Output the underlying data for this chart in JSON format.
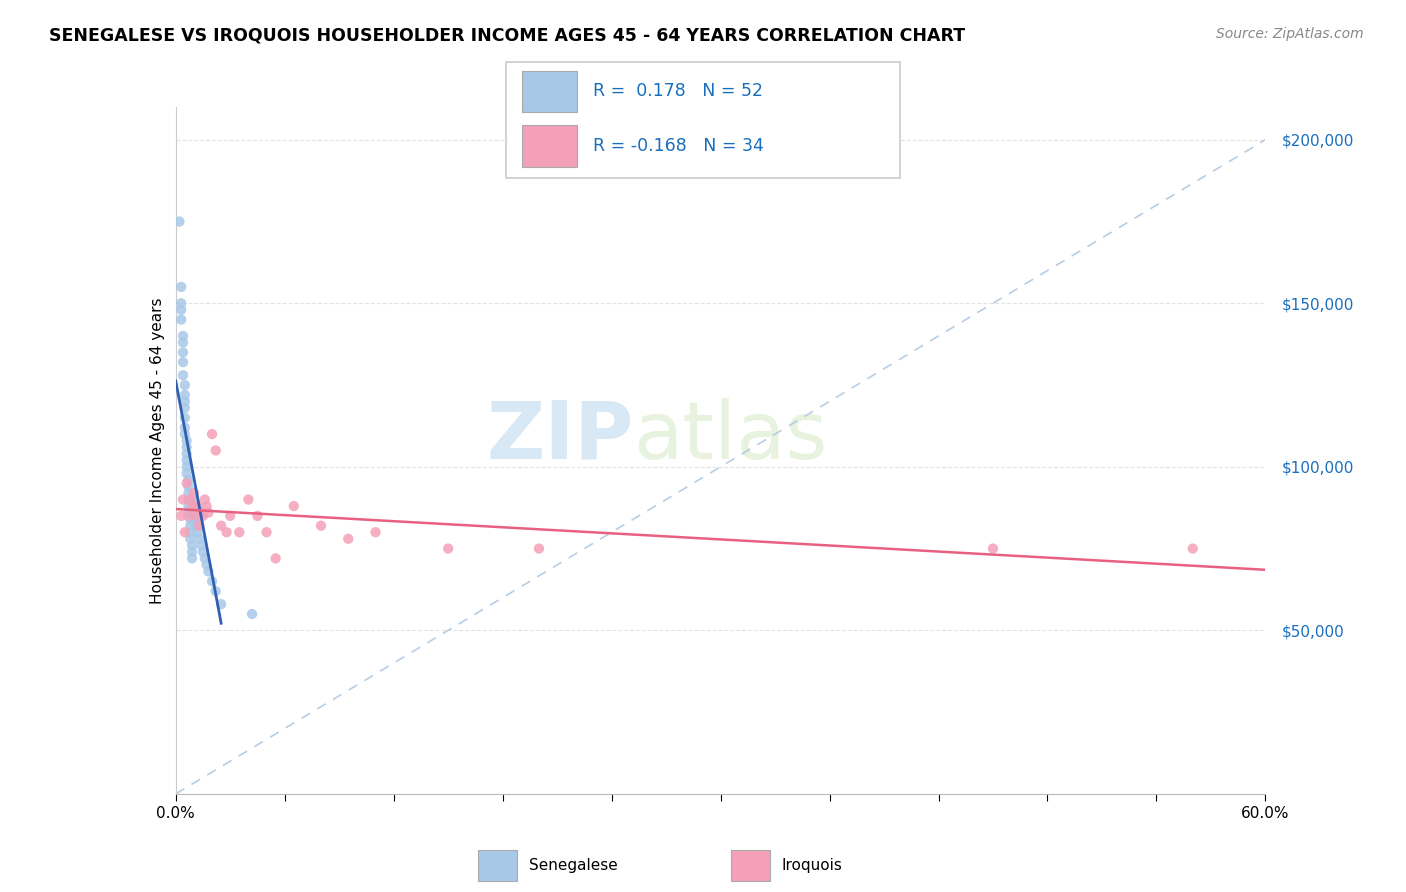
{
  "title": "SENEGALESE VS IROQUOIS HOUSEHOLDER INCOME AGES 45 - 64 YEARS CORRELATION CHART",
  "source": "Source: ZipAtlas.com",
  "ylabel": "Householder Income Ages 45 - 64 years",
  "x_min": 0.0,
  "x_max": 0.6,
  "y_min": 0,
  "y_max": 210000,
  "ytick_vals": [
    0,
    50000,
    100000,
    150000,
    200000
  ],
  "ytick_labels": [
    "",
    "$50,000",
    "$100,000",
    "$150,000",
    "$200,000"
  ],
  "color_senegalese": "#a8c8e8",
  "color_iroquois": "#f4a0b8",
  "line_color_senegalese": "#3060b0",
  "line_color_iroquois": "#e86080",
  "ref_line_color": "#b0c8e0",
  "watermark_color": "#c8dff0",
  "senegalese_x": [
    0.002,
    0.003,
    0.003,
    0.003,
    0.003,
    0.004,
    0.004,
    0.004,
    0.004,
    0.004,
    0.005,
    0.005,
    0.005,
    0.005,
    0.005,
    0.005,
    0.005,
    0.006,
    0.006,
    0.006,
    0.006,
    0.006,
    0.006,
    0.007,
    0.007,
    0.007,
    0.007,
    0.007,
    0.007,
    0.008,
    0.008,
    0.008,
    0.008,
    0.009,
    0.009,
    0.009,
    0.01,
    0.01,
    0.01,
    0.011,
    0.011,
    0.012,
    0.013,
    0.014,
    0.015,
    0.016,
    0.017,
    0.018,
    0.02,
    0.022,
    0.025,
    0.042
  ],
  "senegalese_y": [
    175000,
    155000,
    150000,
    148000,
    145000,
    140000,
    138000,
    135000,
    132000,
    128000,
    125000,
    122000,
    120000,
    118000,
    115000,
    112000,
    110000,
    108000,
    106000,
    104000,
    102000,
    100000,
    98000,
    96000,
    94000,
    92000,
    90000,
    88000,
    86000,
    84000,
    82000,
    80000,
    78000,
    76000,
    74000,
    72000,
    90000,
    88000,
    86000,
    84000,
    82000,
    80000,
    78000,
    76000,
    74000,
    72000,
    70000,
    68000,
    65000,
    62000,
    58000,
    55000
  ],
  "iroquois_x": [
    0.003,
    0.004,
    0.005,
    0.006,
    0.007,
    0.008,
    0.009,
    0.01,
    0.011,
    0.012,
    0.013,
    0.014,
    0.015,
    0.016,
    0.017,
    0.018,
    0.02,
    0.022,
    0.025,
    0.028,
    0.03,
    0.035,
    0.04,
    0.045,
    0.05,
    0.055,
    0.065,
    0.08,
    0.095,
    0.11,
    0.15,
    0.2,
    0.45,
    0.56
  ],
  "iroquois_y": [
    85000,
    90000,
    80000,
    95000,
    85000,
    90000,
    88000,
    92000,
    85000,
    88000,
    82000,
    86000,
    85000,
    90000,
    88000,
    86000,
    110000,
    105000,
    82000,
    80000,
    85000,
    80000,
    90000,
    85000,
    80000,
    72000,
    88000,
    82000,
    78000,
    80000,
    75000,
    75000,
    75000,
    75000
  ],
  "legend_text1": "R =  0.178   N = 52",
  "legend_text2": "R = -0.168   N = 34"
}
